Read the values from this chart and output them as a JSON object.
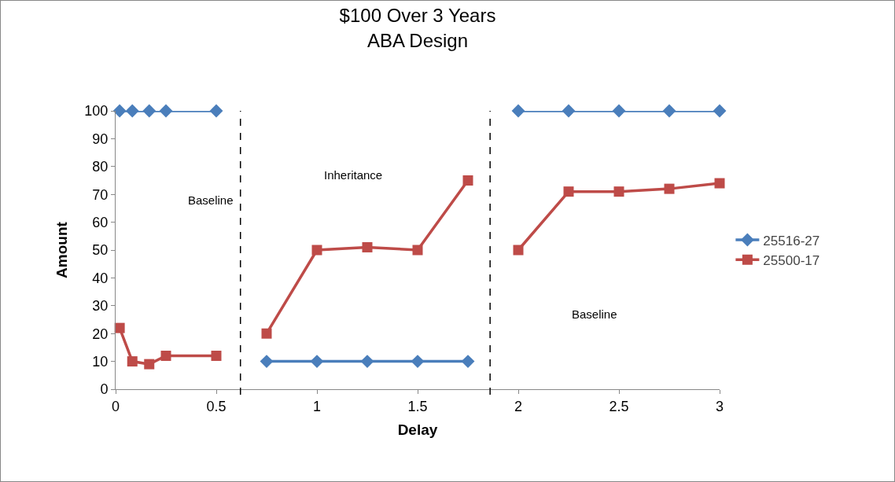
{
  "chart_data": {
    "type": "line",
    "title": "$100 Over 3 Years",
    "subtitle": "ABA Design",
    "xlabel": "Delay",
    "ylabel": "Amount",
    "x": [
      0.02,
      0.083,
      0.167,
      0.25,
      0.5,
      0.625,
      0.75,
      1,
      1.25,
      1.5,
      1.75,
      1.875,
      2,
      2.25,
      2.5,
      2.75,
      3
    ],
    "series": [
      {
        "name": "25516-27",
        "color": "#4a7ebb",
        "marker": "diamond",
        "values": [
          100,
          100,
          100,
          100,
          100,
          null,
          10,
          10,
          10,
          10,
          10,
          null,
          100,
          100,
          100,
          100,
          100
        ]
      },
      {
        "name": "25500-17",
        "color": "#be4b48",
        "marker": "square",
        "values": [
          22,
          10,
          9,
          12,
          12,
          null,
          20,
          50,
          51,
          50,
          75,
          null,
          50,
          71,
          71,
          72,
          74
        ]
      }
    ],
    "xlim": [
      0,
      3
    ],
    "xticks": [
      0,
      0.5,
      1,
      1.5,
      2,
      2.5,
      3
    ],
    "ylim": [
      0,
      100
    ],
    "yticks": [
      0,
      10,
      20,
      30,
      40,
      50,
      60,
      70,
      80,
      90,
      100
    ],
    "ref_lines": [
      {
        "axis": "x",
        "value": 0.62,
        "color": "#000000",
        "line_style": "dashed"
      },
      {
        "axis": "x",
        "value": 1.86,
        "color": "#000000",
        "line_style": "dashed"
      }
    ],
    "annotations": [
      "Baseline",
      "Inheritance",
      "Baseline"
    ],
    "grid": false,
    "legend": "right",
    "line_style": "solid"
  }
}
